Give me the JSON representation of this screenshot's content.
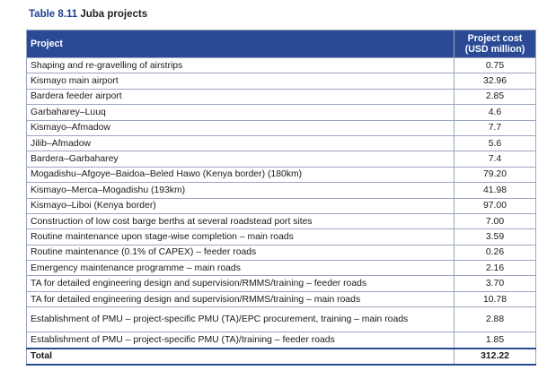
{
  "caption": {
    "number": "Table 8.11",
    "title": "Juba projects"
  },
  "table": {
    "headers": {
      "project": "Project",
      "cost_line1": "Project cost",
      "cost_line2": "(USD million)"
    },
    "rows": [
      {
        "project": "Shaping and re-gravelling of airstrips",
        "cost": "0.75"
      },
      {
        "project": "Kismayo main airport",
        "cost": "32.96"
      },
      {
        "project": "Bardera feeder airport",
        "cost": "2.85"
      },
      {
        "project": "Garbaharey–Luuq",
        "cost": "4.6"
      },
      {
        "project": "Kismayo–Afmadow",
        "cost": "7.7"
      },
      {
        "project": "Jilib–Afmadow",
        "cost": "5.6"
      },
      {
        "project": "Bardera–Garbaharey",
        "cost": "7.4"
      },
      {
        "project": "Mogadishu–Afgoye–Baidoa–Beled Hawo (Kenya border) (180km)",
        "cost": "79.20"
      },
      {
        "project": "Kismayo–Merca–Mogadishu (193km)",
        "cost": "41.98"
      },
      {
        "project": "Kismayo–Liboi (Kenya border)",
        "cost": "97.00"
      },
      {
        "project": "Construction of low cost barge berths at several roadstead port sites",
        "cost": "7.00"
      },
      {
        "project": "Routine maintenance upon stage-wise completion – main roads",
        "cost": "3.59"
      },
      {
        "project": "Routine maintenance (0.1% of CAPEX) – feeder roads",
        "cost": "0.26"
      },
      {
        "project": "Emergency maintenance programme – main roads",
        "cost": "2.16"
      },
      {
        "project": "TA for detailed engineering design and supervision/RMMS/training – feeder roads",
        "cost": "3.70"
      },
      {
        "project": "TA for detailed engineering design and supervision/RMMS/training – main roads",
        "cost": "10.78"
      },
      {
        "project": "Establishment of PMU – project-specific PMU (TA)/EPC procurement, training – main roads",
        "cost": "2.88"
      },
      {
        "project": "Establishment of PMU – project-specific PMU (TA)/training – feeder roads",
        "cost": "1.85"
      }
    ],
    "total": {
      "label": "Total",
      "cost": "312.22"
    }
  },
  "colors": {
    "header_bg": "#2a4a96",
    "caption_number": "#1d3f8f",
    "border": "#9aa5bf"
  }
}
